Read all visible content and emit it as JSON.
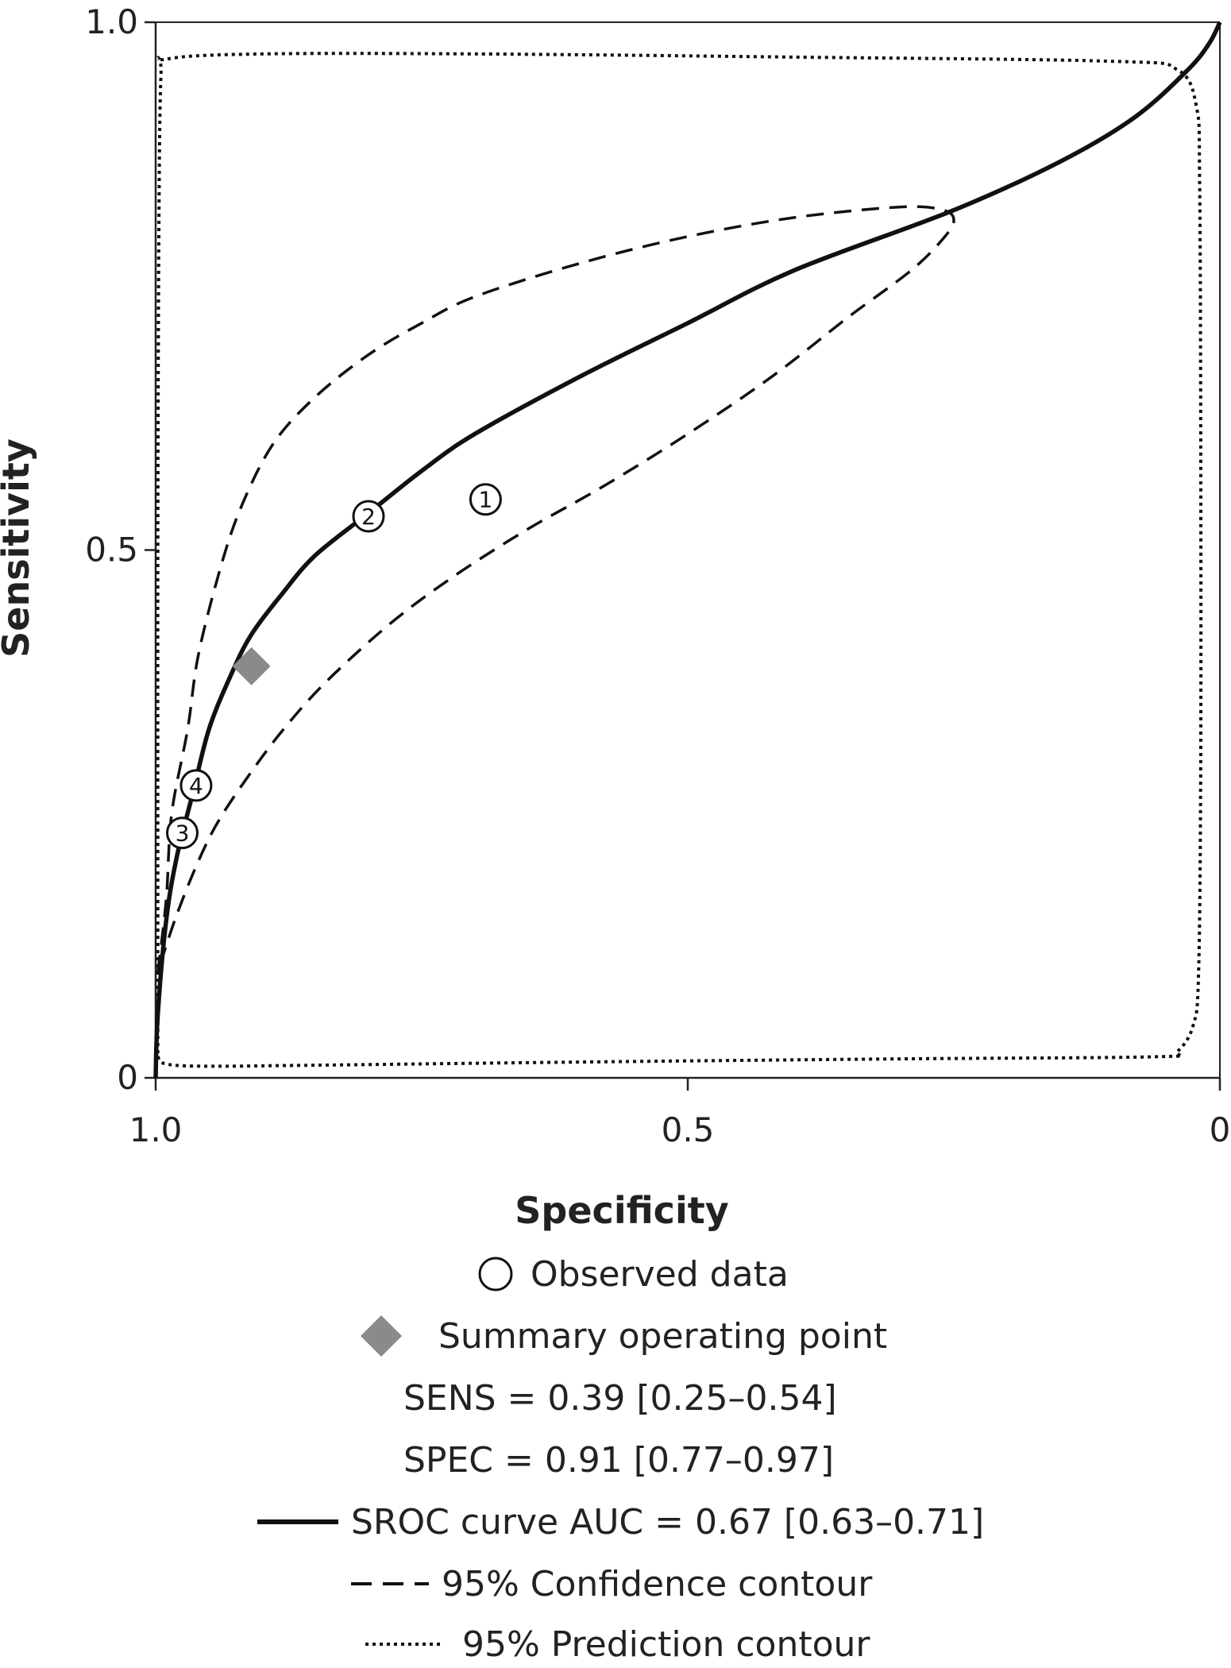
{
  "chart_data": {
    "type": "scatter",
    "xlabel": "Specificity",
    "ylabel": "Sensitivity",
    "xlim": [
      1.0,
      0
    ],
    "ylim": [
      0,
      1.0
    ],
    "x_reversed": true,
    "x_ticks": [
      "1.0",
      "0.5",
      "0"
    ],
    "y_ticks": [
      "0",
      "0.5",
      "1.0"
    ],
    "grid": false,
    "legend_position": "bottom",
    "observed": [
      {
        "label": "1",
        "specificity": 0.69,
        "sensitivity": 0.548
      },
      {
        "label": "2",
        "specificity": 0.8,
        "sensitivity": 0.532
      },
      {
        "label": "3",
        "specificity": 0.975,
        "sensitivity": 0.232
      },
      {
        "label": "4",
        "specificity": 0.962,
        "sensitivity": 0.277
      }
    ],
    "summary_point": {
      "specificity": 0.91,
      "sensitivity": 0.39
    },
    "sroc_curve": [
      [
        1.0,
        0.0
      ],
      [
        0.998,
        0.06
      ],
      [
        0.99,
        0.15
      ],
      [
        0.98,
        0.21
      ],
      [
        0.965,
        0.27
      ],
      [
        0.95,
        0.33
      ],
      [
        0.93,
        0.38
      ],
      [
        0.91,
        0.42
      ],
      [
        0.88,
        0.46
      ],
      [
        0.85,
        0.495
      ],
      [
        0.8,
        0.535
      ],
      [
        0.75,
        0.575
      ],
      [
        0.7,
        0.61
      ],
      [
        0.6,
        0.665
      ],
      [
        0.5,
        0.715
      ],
      [
        0.4,
        0.765
      ],
      [
        0.25,
        0.822
      ],
      [
        0.15,
        0.868
      ],
      [
        0.08,
        0.91
      ],
      [
        0.03,
        0.955
      ],
      [
        0.01,
        0.98
      ],
      [
        0.0,
        1.0
      ]
    ],
    "confidence_contour": [
      [
        0.998,
        0.1
      ],
      [
        0.99,
        0.17
      ],
      [
        0.985,
        0.25
      ],
      [
        0.97,
        0.33
      ],
      [
        0.96,
        0.4
      ],
      [
        0.94,
        0.48
      ],
      [
        0.92,
        0.54
      ],
      [
        0.89,
        0.6
      ],
      [
        0.85,
        0.645
      ],
      [
        0.8,
        0.685
      ],
      [
        0.75,
        0.715
      ],
      [
        0.7,
        0.74
      ],
      [
        0.6,
        0.772
      ],
      [
        0.5,
        0.797
      ],
      [
        0.4,
        0.815
      ],
      [
        0.3,
        0.825
      ],
      [
        0.26,
        0.822
      ],
      [
        0.25,
        0.812
      ],
      [
        0.26,
        0.795
      ],
      [
        0.29,
        0.765
      ],
      [
        0.35,
        0.72
      ],
      [
        0.42,
        0.665
      ],
      [
        0.5,
        0.61
      ],
      [
        0.58,
        0.56
      ],
      [
        0.65,
        0.52
      ],
      [
        0.72,
        0.475
      ],
      [
        0.78,
        0.43
      ],
      [
        0.84,
        0.375
      ],
      [
        0.88,
        0.33
      ],
      [
        0.91,
        0.29
      ],
      [
        0.94,
        0.245
      ],
      [
        0.96,
        0.205
      ],
      [
        0.98,
        0.155
      ],
      [
        0.995,
        0.11
      ],
      [
        0.998,
        0.1
      ]
    ],
    "prediction_contour": [
      [
        0.998,
        0.02
      ],
      [
        0.99,
        0.013
      ],
      [
        0.95,
        0.011
      ],
      [
        0.85,
        0.012
      ],
      [
        0.6,
        0.015
      ],
      [
        0.3,
        0.018
      ],
      [
        0.06,
        0.02
      ],
      [
        0.04,
        0.025
      ],
      [
        0.025,
        0.05
      ],
      [
        0.02,
        0.1
      ],
      [
        0.018,
        0.3
      ],
      [
        0.018,
        0.6
      ],
      [
        0.019,
        0.85
      ],
      [
        0.022,
        0.92
      ],
      [
        0.04,
        0.955
      ],
      [
        0.1,
        0.963
      ],
      [
        0.4,
        0.967
      ],
      [
        0.7,
        0.97
      ],
      [
        0.9,
        0.97
      ],
      [
        0.99,
        0.965
      ],
      [
        0.995,
        0.95
      ],
      [
        0.997,
        0.8
      ],
      [
        0.998,
        0.5
      ],
      [
        0.998,
        0.2
      ],
      [
        0.998,
        0.02
      ]
    ]
  },
  "legend": {
    "observed": "Observed data",
    "summary": "Summary operating point",
    "sens": "SENS = 0.39 [0.25–0.54]",
    "spec": "SPEC = 0.91 [0.77–0.97]",
    "sroc": "SROC curve AUC = 0.67 [0.63–0.71]",
    "confidence": "95% Confidence contour",
    "prediction": "95% Prediction contour"
  },
  "colors": {
    "line": "#111111",
    "summary_point": "#8a8a8a"
  }
}
